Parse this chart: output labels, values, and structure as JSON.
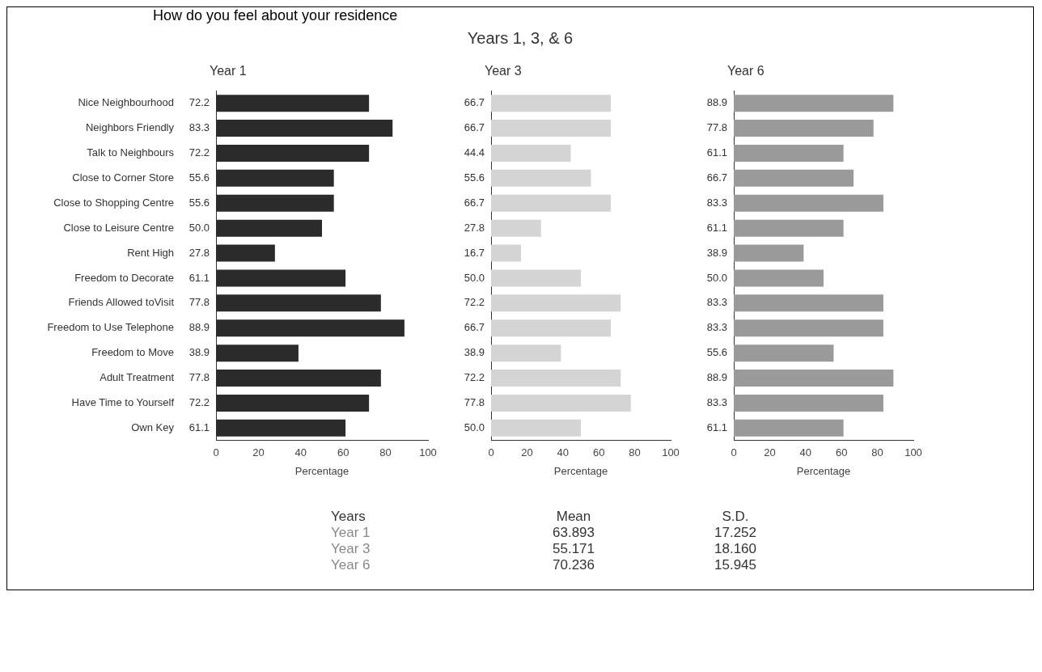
{
  "chart_data": [
    {
      "type": "other",
      "title": "Years 1, 3, & 6",
      "annotations": [
        "How do you feel about your residence"
      ]
    },
    {
      "type": "bar",
      "orientation": "horizontal",
      "title": "Year 1",
      "xlabel": "Percentage",
      "categories": [
        "Nice Neighbourhood",
        "Neighbors Friendly",
        "Talk to Neighbours",
        "Close to Corner Store",
        "Close to Shopping Centre",
        "Close to Leisure Centre",
        "Rent High",
        "Freedom to Decorate",
        "Friends Allowed toVisit",
        "Freedom to Use Telephone",
        "Freedom to Move",
        "Adult Treatment",
        "Have Time to Yourself",
        "Own Key"
      ],
      "values": [
        72.2,
        83.3,
        72.2,
        55.6,
        55.6,
        50.0,
        27.8,
        61.1,
        77.8,
        88.9,
        38.9,
        77.8,
        72.2,
        61.1
      ],
      "value_labels": [
        "72.2",
        "83.3",
        "72.2",
        "55.6",
        "55.6",
        "50.0",
        "27.8",
        "61.1",
        "77.8",
        "88.9",
        "38.9",
        "77.8",
        "72.2",
        "61.1"
      ],
      "color": "#2b2b2b",
      "xlim": [
        0,
        100
      ],
      "xticks": [
        0,
        20,
        40,
        60,
        80,
        100
      ],
      "grid": false
    },
    {
      "type": "bar",
      "orientation": "horizontal",
      "title": "Year 3",
      "xlabel": "Percentage",
      "categories": [
        null,
        null,
        null,
        null,
        null,
        null,
        null,
        null,
        null,
        null,
        null,
        null,
        null,
        null
      ],
      "values": [
        66.7,
        66.7,
        44.4,
        55.6,
        66.7,
        27.8,
        16.7,
        50.0,
        72.2,
        66.7,
        38.9,
        72.2,
        77.8,
        50.0
      ],
      "value_labels": [
        "66.7",
        "66.7",
        "44.4",
        "55.6",
        "66.7",
        "27.8",
        "16.7",
        "50.0",
        "72.2",
        "66.7",
        "38.9",
        "72.2",
        "77.8",
        "50.0"
      ],
      "color": "#d4d4d4",
      "xlim": [
        0,
        100
      ],
      "xticks": [
        0,
        20,
        40,
        60,
        80,
        100
      ],
      "grid": false
    },
    {
      "type": "bar",
      "orientation": "horizontal",
      "title": "Year 6",
      "xlabel": "Percentage",
      "categories": [
        null,
        null,
        null,
        null,
        null,
        null,
        null,
        null,
        null,
        null,
        null,
        null,
        null,
        null
      ],
      "values": [
        88.9,
        77.8,
        61.1,
        66.7,
        83.3,
        61.1,
        38.9,
        50.0,
        83.3,
        83.3,
        55.6,
        88.9,
        83.3,
        61.1
      ],
      "value_labels": [
        "88.9",
        "77.8",
        "61.1",
        "66.7",
        "83.3",
        "61.1",
        "38.9",
        "50.0",
        "83.3",
        "83.3",
        "55.6",
        "88.9",
        "83.3",
        "61.1"
      ],
      "color": "#9a9a9a",
      "xlim": [
        0,
        100
      ],
      "xticks": [
        0,
        20,
        40,
        60,
        80,
        100
      ],
      "grid": false
    },
    {
      "type": "other",
      "annotations": [
        "Years",
        "Mean",
        "S.D.",
        "Year 1",
        "63.893",
        "17.252",
        "Year 3",
        "55.171",
        "18.160",
        "Year 6",
        "70.236",
        "15.945"
      ]
    }
  ]
}
